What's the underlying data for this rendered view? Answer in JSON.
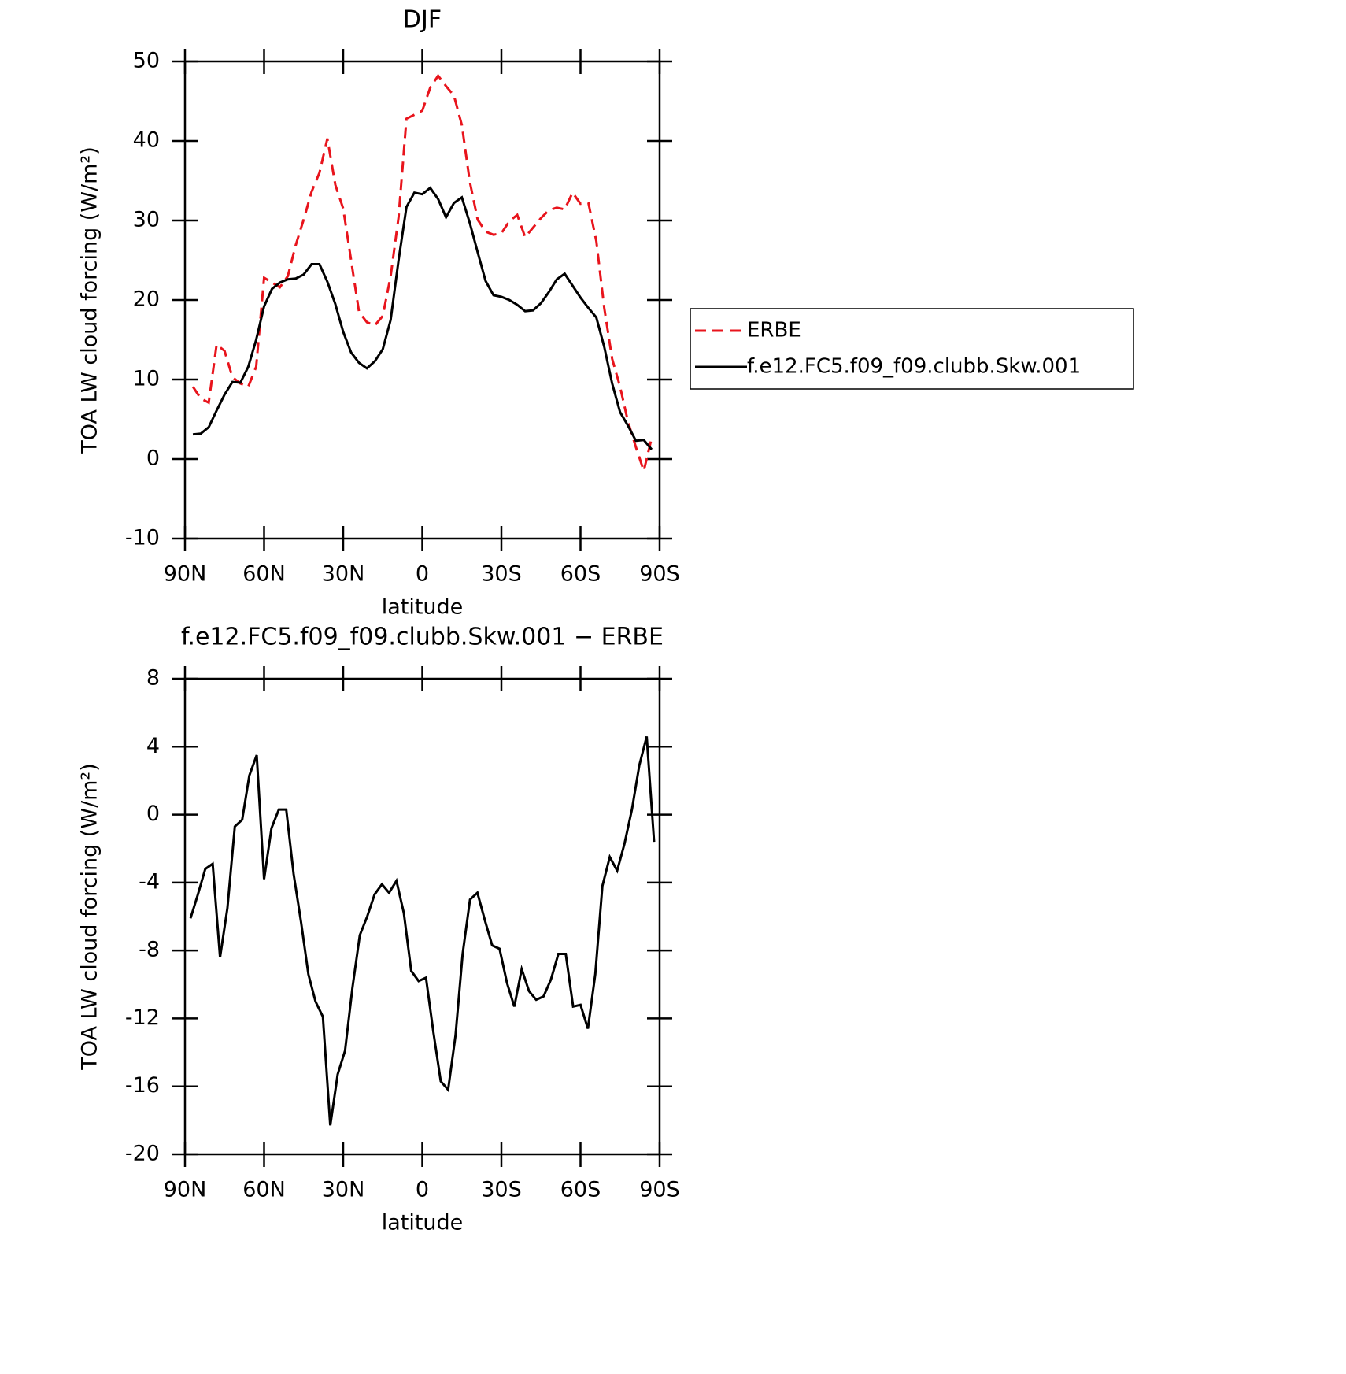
{
  "chart_data": [
    {
      "type": "line",
      "title": "DJF",
      "xlabel": "latitude",
      "ylabel": "TOA LW cloud forcing (W/m²)",
      "xlim": [
        90,
        -90
      ],
      "xticks": [
        {
          "value": 90,
          "label": "90N"
        },
        {
          "value": 60,
          "label": "60N"
        },
        {
          "value": 30,
          "label": "30N"
        },
        0,
        {
          "value": -30,
          "label": "30S"
        },
        {
          "value": -60,
          "label": "60S"
        },
        {
          "value": -90,
          "label": "90S"
        }
      ],
      "ylim": [
        -10,
        50
      ],
      "yticks": [
        -10,
        0,
        10,
        20,
        30,
        40,
        50
      ],
      "legend": "right",
      "x": [
        87,
        84,
        81,
        78,
        75,
        72,
        69,
        66,
        63,
        60,
        57,
        54,
        51,
        48,
        45,
        42,
        39,
        36,
        33,
        30,
        27,
        24,
        21,
        18,
        15,
        12,
        9,
        6,
        3,
        0,
        -3,
        -6,
        -9,
        -12,
        -15,
        -18,
        -21,
        -24,
        -27,
        -30,
        -33,
        -36,
        -39,
        -42,
        -45,
        -48,
        -51,
        -54,
        -57,
        -60,
        -63,
        -66,
        -69,
        -72,
        -75,
        -78,
        -81,
        -84,
        -87
      ],
      "series": [
        {
          "name": "ERBE",
          "color": "#e8141c",
          "linestyle": "dashed",
          "values": [
            9.1,
            7.6,
            7.1,
            14.4,
            13.6,
            10.3,
            9.5,
            9.1,
            11.6,
            22.8,
            22.2,
            21.6,
            23,
            26.9,
            30.1,
            33.6,
            36.0,
            40.3,
            34.5,
            31.5,
            25,
            18.5,
            17.2,
            16.8,
            18,
            23,
            30.4,
            42.8,
            43.3,
            43.8,
            46.7,
            48.2,
            46.9,
            45.7,
            42,
            34.9,
            30.1,
            28.6,
            28.2,
            28.4,
            29.9,
            30.7,
            27.9,
            29.1,
            30.3,
            31.3,
            31.6,
            31.4,
            33.5,
            32.1,
            32.2,
            27.4,
            19,
            12.6,
            9.1,
            4.7,
            1.5,
            -1.5,
            2.7
          ]
        },
        {
          "name": "f.e12.FC5.f09_f09.clubb.Skw.001",
          "color": "#000000",
          "linestyle": "solid",
          "values": [
            3.1,
            3.2,
            4.0,
            6.1,
            8.1,
            9.7,
            9.6,
            11.6,
            15,
            19.2,
            21.4,
            22.2,
            22.6,
            22.7,
            23.2,
            24.5,
            24.5,
            22.3,
            19.5,
            16,
            13.4,
            12.1,
            11.4,
            12.3,
            13.8,
            17.5,
            25,
            31.7,
            33.5,
            33.3,
            34.1,
            32.7,
            30.4,
            32.2,
            32.9,
            29.7,
            26,
            22.4,
            20.6,
            20.4,
            20,
            19.4,
            18.6,
            18.7,
            19.6,
            21,
            22.6,
            23.3,
            21.8,
            20.3,
            19,
            17.8,
            14.1,
            9.5,
            5.9,
            4.2,
            2.3,
            2.4,
            1.2
          ]
        }
      ]
    },
    {
      "type": "line",
      "title": "f.e12.FC5.f09_f09.clubb.Skw.001 − ERBE",
      "xlabel": "latitude",
      "ylabel": "TOA LW cloud forcing (W/m²)",
      "xlim": [
        90,
        -90
      ],
      "xticks": [
        {
          "value": 90,
          "label": "90N"
        },
        {
          "value": 60,
          "label": "60N"
        },
        {
          "value": 30,
          "label": "30N"
        },
        0,
        {
          "value": -30,
          "label": "30S"
        },
        {
          "value": -60,
          "label": "60S"
        },
        {
          "value": -90,
          "label": "90S"
        }
      ],
      "ylim": [
        -20,
        8
      ],
      "yticks": [
        -20,
        -16,
        -12,
        -8,
        -4,
        0,
        4,
        8
      ],
      "x": [
        87.9,
        85.1,
        82.3,
        79.5,
        76.7,
        73.9,
        71.1,
        68.3,
        65.6,
        62.8,
        60.0,
        57.2,
        54.4,
        51.6,
        48.8,
        46.0,
        43.2,
        40.5,
        37.7,
        34.9,
        32.1,
        29.3,
        26.5,
        23.7,
        20.9,
        18.1,
        15.3,
        12.6,
        9.8,
        7.0,
        4.2,
        1.4,
        -1.4,
        -4.2,
        -7.0,
        -9.8,
        -12.6,
        -15.3,
        -18.1,
        -20.9,
        -23.7,
        -26.5,
        -29.3,
        -32.1,
        -34.9,
        -37.7,
        -40.5,
        -43.2,
        -46.0,
        -48.8,
        -51.6,
        -54.4,
        -57.2,
        -60.0,
        -62.8,
        -65.6,
        -68.3,
        -71.1,
        -73.9,
        -76.7,
        -79.5,
        -82.3,
        -85.1,
        -87.9
      ],
      "series": [
        {
          "color": "#000000",
          "linestyle": "solid",
          "values": [
            -6.1,
            -4.7,
            -3.2,
            -2.9,
            -8.4,
            -5.5,
            -0.7,
            -0.3,
            2.3,
            3.5,
            -3.8,
            -0.8,
            0.3,
            0.3,
            -3.5,
            -6.3,
            -9.4,
            -11,
            -11.9,
            -18.3,
            -15.3,
            -13.9,
            -10.2,
            -7.1,
            -6,
            -4.7,
            -4.1,
            -4.6,
            -3.9,
            -5.8,
            -9.2,
            -9.8,
            -9.6,
            -12.8,
            -15.7,
            -16.2,
            -13,
            -8.2,
            -5,
            -4.6,
            -6.2,
            -7.7,
            -7.9,
            -9.9,
            -11.3,
            -9.1,
            -10.4,
            -10.9,
            -10.7,
            -9.7,
            -8.2,
            -8.2,
            -11.3,
            -11.2,
            -12.6,
            -9.4,
            -4.2,
            -2.5,
            -3.3,
            -1.7,
            0.3,
            2.9,
            4.6,
            -1.6
          ]
        }
      ]
    }
  ]
}
